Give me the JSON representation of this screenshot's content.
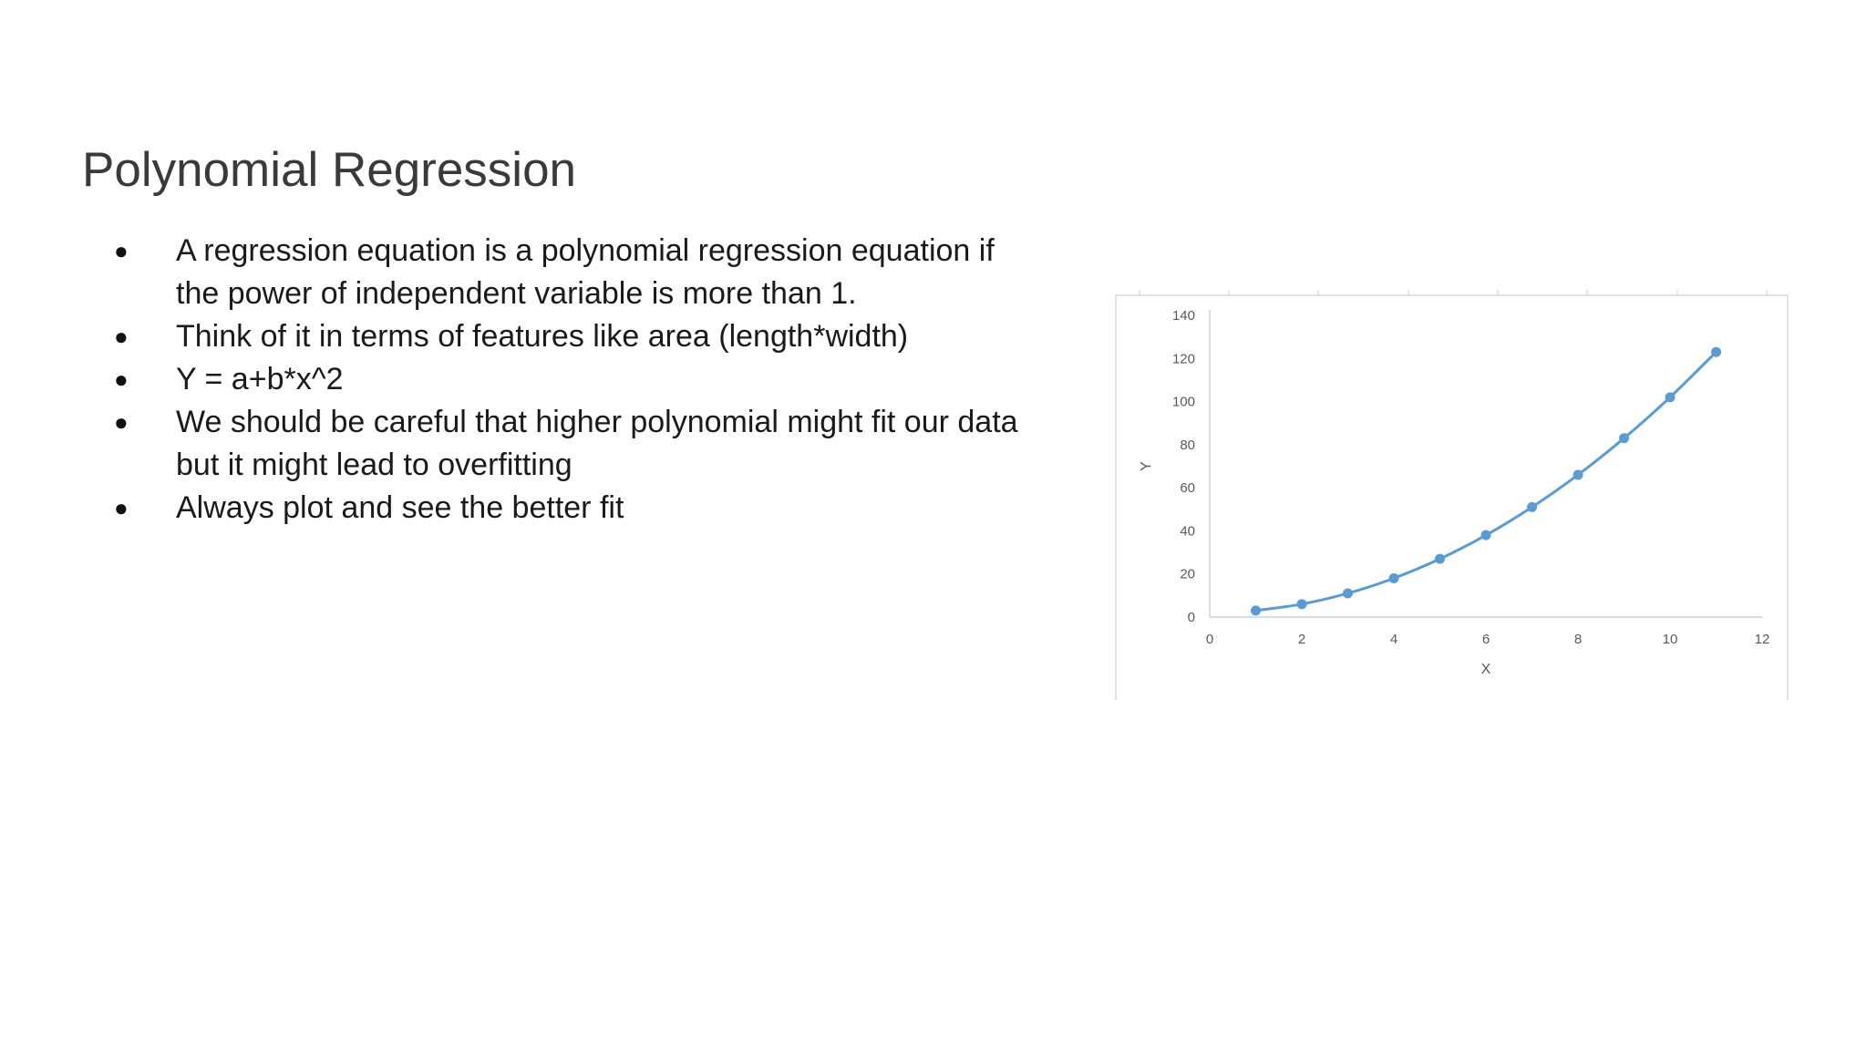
{
  "slide": {
    "title": "Polynomial Regression",
    "bullets": [
      "A regression equation is a polynomial regression equation if the power of independent variable is more than 1.",
      "Think of it in terms of features like area (length*width)",
      "Y = a+b*x^2",
      "We should be careful that higher polynomial might fit our data but it might lead to overfitting",
      "Always plot and see the better fit"
    ],
    "bullet_marker": "●"
  },
  "chart_data": {
    "type": "line",
    "title": "",
    "xlabel": "X",
    "ylabel": "Y",
    "xlim": [
      0,
      12
    ],
    "ylim": [
      0,
      140
    ],
    "xticks": [
      0,
      2,
      4,
      6,
      8,
      10,
      12
    ],
    "yticks": [
      0,
      20,
      40,
      60,
      80,
      100,
      120,
      140
    ],
    "grid": false,
    "legend": "none",
    "markers": true,
    "color": "#5b9bd5",
    "series": [
      {
        "x": [
          1,
          2,
          3,
          4,
          5,
          6,
          7,
          8,
          9,
          10,
          11
        ],
        "y": [
          3,
          6,
          11,
          18,
          27,
          38,
          51,
          66,
          83,
          102,
          123
        ]
      }
    ]
  }
}
